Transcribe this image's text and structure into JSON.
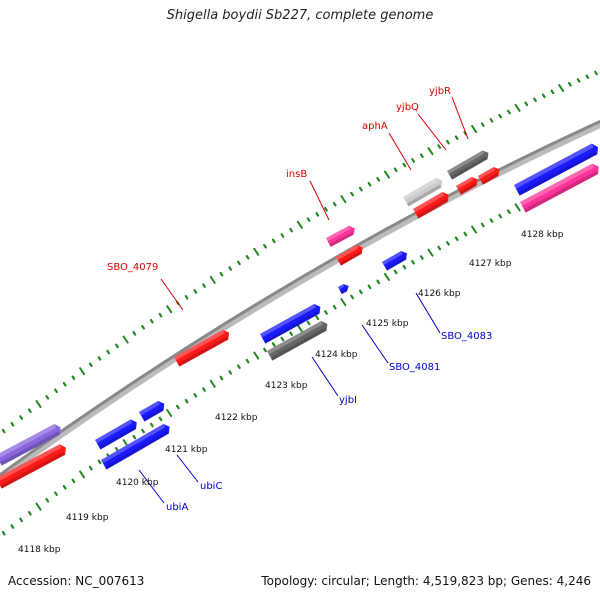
{
  "title": "Shigella boydii Sb227, complete genome",
  "footer": {
    "accession": "Accession: NC_007613",
    "summary": "Topology: circular; Length: 4,519,823 bp; Genes: 4,246"
  },
  "colors": {
    "forward_cds": "#ff1a1a",
    "reverse_cds": "#1a1aff",
    "pseudo_or_mobile": "#ff3399",
    "other_gray": "#666666",
    "light_gray": "#cccccc",
    "purple": "#8866dd",
    "backbone": "#999999",
    "tick": "#228822",
    "forward_label": "#dd0000",
    "reverse_label": "#0000cc"
  },
  "scale_labels": [
    {
      "kbp": 4118,
      "text": "4118 kbp"
    },
    {
      "kbp": 4119,
      "text": "4119 kbp"
    },
    {
      "kbp": 4120,
      "text": "4120 kbp"
    },
    {
      "kbp": 4121,
      "text": "4121 kbp"
    },
    {
      "kbp": 4122,
      "text": "4122 kbp"
    },
    {
      "kbp": 4123,
      "text": "4123 kbp"
    },
    {
      "kbp": 4124,
      "text": "4124 kbp"
    },
    {
      "kbp": 4125,
      "text": "4125 kbp"
    },
    {
      "kbp": 4126,
      "text": "4126 kbp"
    },
    {
      "kbp": 4127,
      "text": "4127 kbp"
    },
    {
      "kbp": 4128,
      "text": "4128 kbp"
    }
  ],
  "gene_labels_forward": [
    "SBO_4079",
    "insB",
    "aphA",
    "yjbQ",
    "yjbR"
  ],
  "gene_labels_reverse": [
    "ubiA",
    "ubiC",
    "yjbI",
    "SBO_4081",
    "SBO_4083"
  ]
}
